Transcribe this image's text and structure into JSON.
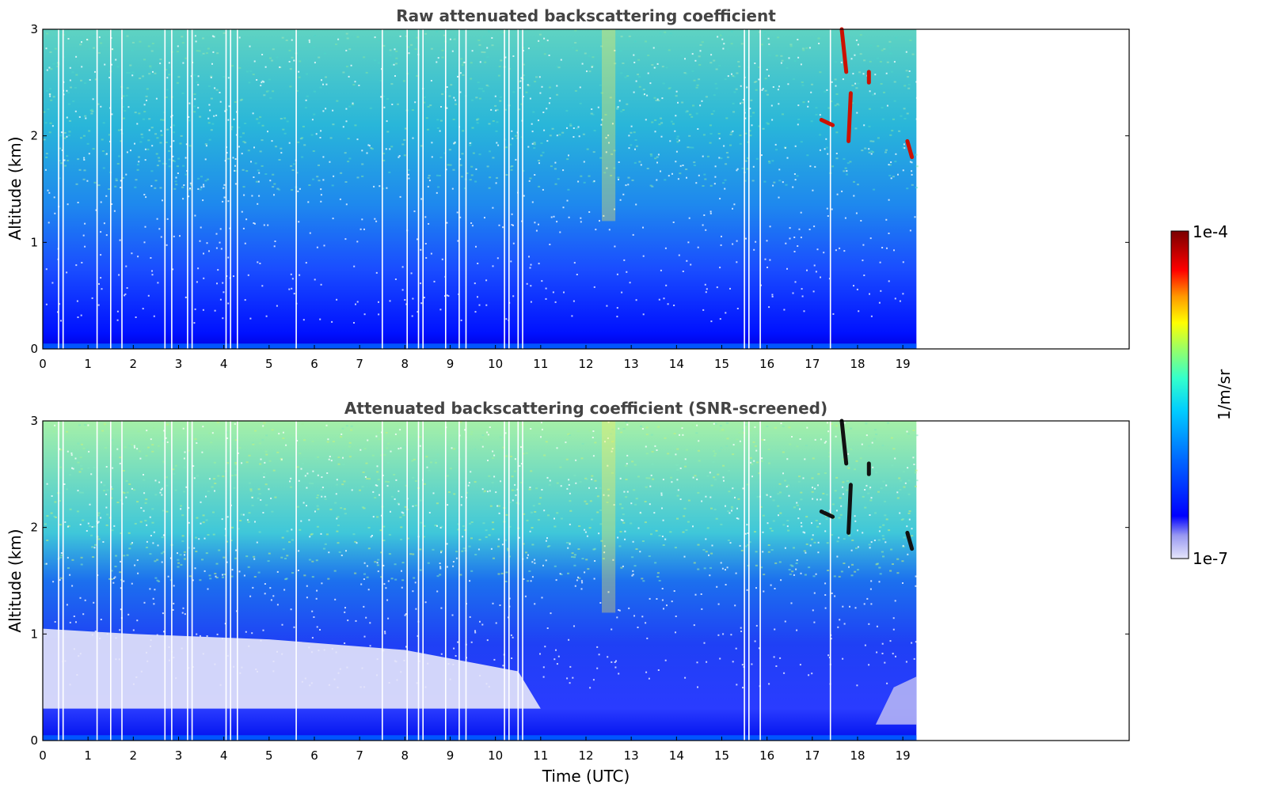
{
  "chart_data": [
    {
      "type": "heatmap",
      "title": "Raw attenuated backscattering coefficient",
      "ylabel": "Altitude (km)",
      "xlabel": "",
      "xlim": [
        0,
        24
      ],
      "ylim": [
        0,
        3
      ],
      "xticks": [
        "0",
        "1",
        "2",
        "3",
        "4",
        "5",
        "6",
        "7",
        "8",
        "9",
        "10",
        "11",
        "12",
        "13",
        "14",
        "15",
        "16",
        "17",
        "18",
        "19"
      ],
      "yticks": [
        "0",
        "1",
        "2",
        "3"
      ],
      "data_extent_hours": [
        0,
        19.3
      ],
      "grid": false,
      "gap_times_hours": [
        0.35,
        0.45,
        1.2,
        1.5,
        1.75,
        2.7,
        2.85,
        3.2,
        3.3,
        4.05,
        4.15,
        4.3,
        5.6,
        7.5,
        8.05,
        8.3,
        8.4,
        8.9,
        9.2,
        9.35,
        10.2,
        10.3,
        10.5,
        10.6,
        15.5,
        15.6,
        15.85,
        17.4
      ]
    },
    {
      "type": "heatmap",
      "title": "Attenuated backscattering coefficient (SNR-screened)",
      "ylabel": "Altitude (km)",
      "xlabel": "Time (UTC)",
      "xlim": [
        0,
        24
      ],
      "ylim": [
        0,
        3
      ],
      "xticks": [
        "0",
        "1",
        "2",
        "3",
        "4",
        "5",
        "6",
        "7",
        "8",
        "9",
        "10",
        "11",
        "12",
        "13",
        "14",
        "15",
        "16",
        "17",
        "18",
        "19"
      ],
      "yticks": [
        "0",
        "1",
        "2",
        "3"
      ],
      "data_extent_hours": [
        0,
        19.3
      ],
      "grid": false,
      "gap_times_hours": [
        0.35,
        0.45,
        1.2,
        1.5,
        1.75,
        2.7,
        2.85,
        3.2,
        3.3,
        4.05,
        4.15,
        4.3,
        5.6,
        7.5,
        8.05,
        8.3,
        8.4,
        8.9,
        9.2,
        9.35,
        10.2,
        10.3,
        10.5,
        10.6,
        15.5,
        15.6,
        15.85,
        17.4
      ]
    }
  ],
  "colorbar": {
    "label": "1/m/sr",
    "max_label": "1e-4",
    "min_label": "1e-7",
    "scale": "log",
    "colors": [
      "#e6e6fa",
      "#b3b3f5",
      "#8080f0",
      "#0000ff",
      "#0066ff",
      "#00ccff",
      "#33ffcc",
      "#80ff80",
      "#ccff33",
      "#ffff00",
      "#ffcc00",
      "#ff6600",
      "#ff0000",
      "#b30000",
      "#800000"
    ]
  }
}
